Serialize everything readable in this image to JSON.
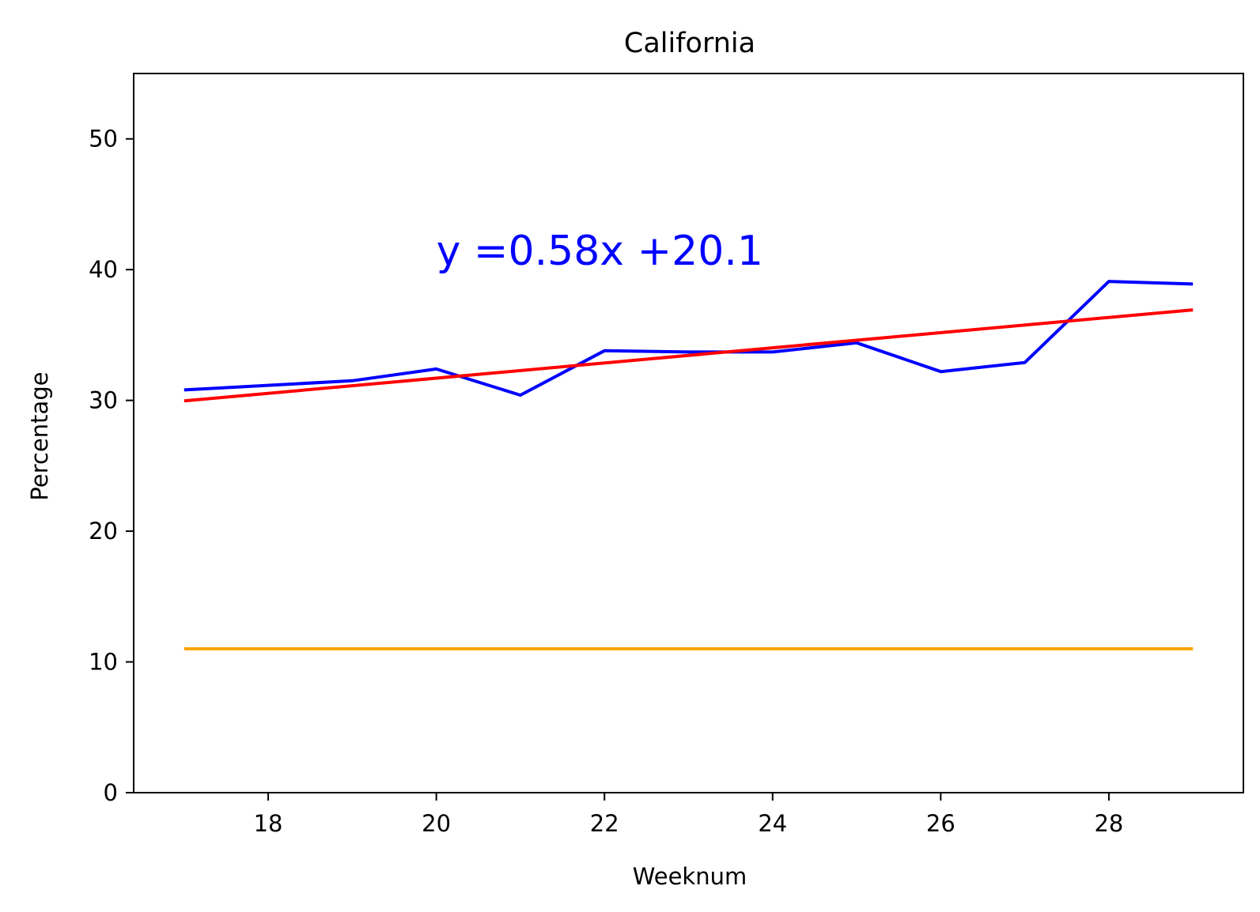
{
  "chart_data": {
    "type": "line",
    "title": "California",
    "xlabel": "Weeknum",
    "ylabel": "Percentage",
    "xlim": [
      16.4,
      29.6
    ],
    "ylim": [
      0,
      55
    ],
    "x_ticks": [
      18,
      20,
      22,
      24,
      26,
      28
    ],
    "y_ticks": [
      0,
      10,
      20,
      30,
      40,
      50
    ],
    "grid": false,
    "annotation": {
      "text": "y =0.58x +20.1",
      "x": 20,
      "y": 40,
      "color": "#0000ff"
    },
    "series": [
      {
        "color": "#0000ff",
        "x": [
          17,
          19,
          20,
          21,
          22,
          23,
          24,
          25,
          26,
          27,
          28,
          29
        ],
        "y": [
          30.8,
          31.5,
          32.4,
          30.4,
          33.8,
          33.7,
          33.7,
          34.4,
          32.2,
          32.9,
          39.1,
          38.9
        ]
      },
      {
        "color": "#ff0000",
        "x": [
          17,
          29
        ],
        "y": [
          29.96,
          36.92
        ]
      },
      {
        "color": "#ffa500",
        "x": [
          17,
          29
        ],
        "y": [
          11,
          11
        ]
      }
    ]
  }
}
